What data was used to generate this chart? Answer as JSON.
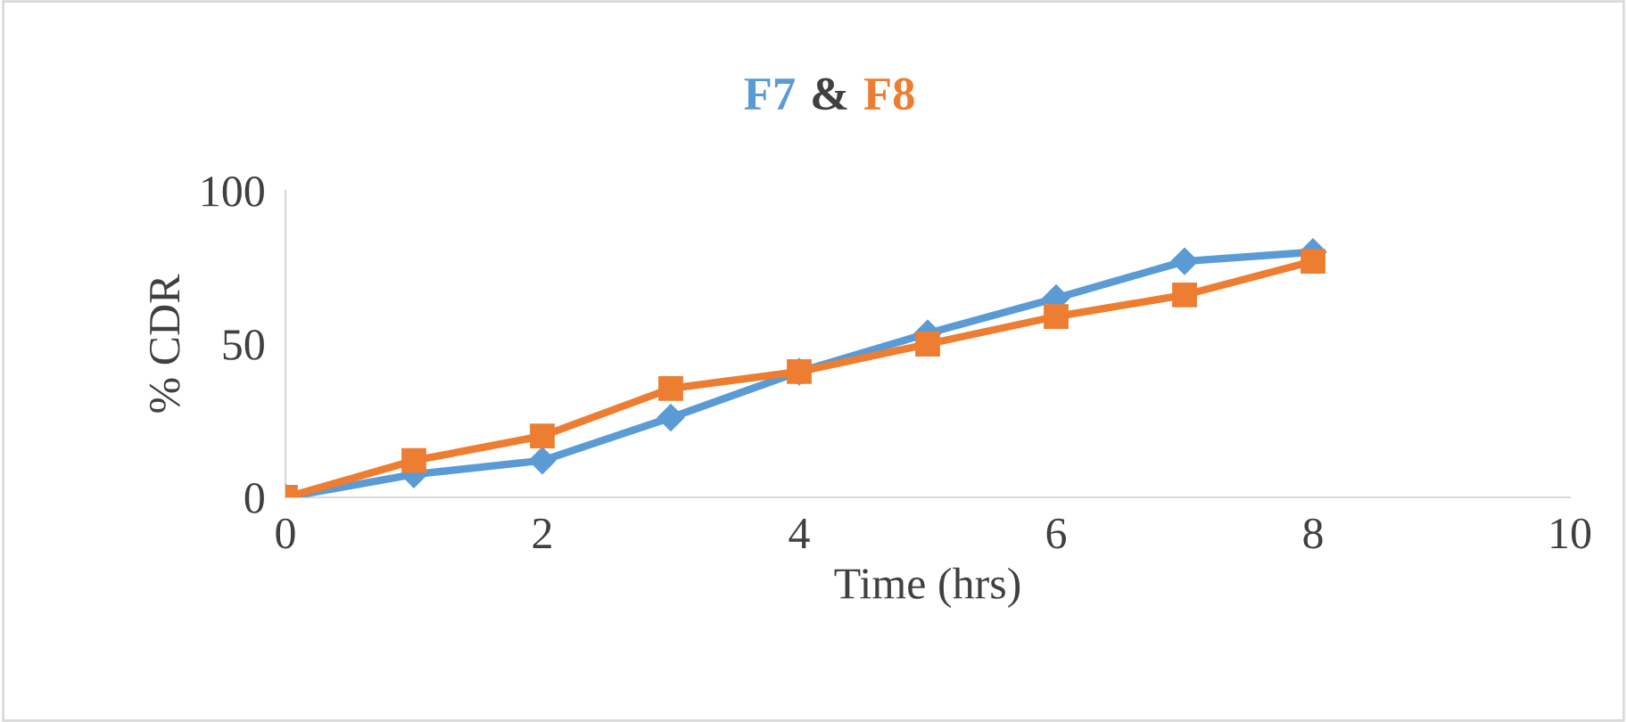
{
  "chart_data": {
    "type": "line",
    "title": "F7 & F8",
    "xlabel": "Time (hrs)",
    "ylabel": "% CDR",
    "x": [
      0,
      1,
      2,
      3,
      4,
      5,
      6,
      7,
      8
    ],
    "series": [
      {
        "color": "#5b9bd5",
        "marker": "diamond",
        "values": [
          0,
          7.5,
          12,
          26,
          41,
          53.5,
          65,
          77,
          80
        ]
      },
      {
        "color": "#ed7d31",
        "marker": "square",
        "values": [
          0,
          12,
          20,
          35.5,
          41,
          50,
          59,
          66,
          77
        ]
      }
    ],
    "xlim": [
      0,
      10
    ],
    "xticks": [
      0,
      2,
      4,
      6,
      8,
      10
    ],
    "ylim": [
      0,
      100
    ],
    "yticks": [
      0,
      50,
      100
    ],
    "grid": false,
    "legend": false,
    "line_style": "solid"
  }
}
